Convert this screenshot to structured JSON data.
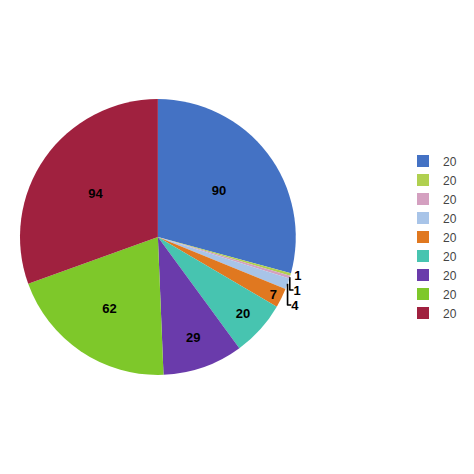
{
  "chart_data": {
    "type": "pie",
    "categories": [
      "20",
      "20",
      "20",
      "20",
      "20",
      "20",
      "20",
      "20",
      "20"
    ],
    "values": [
      90,
      1,
      1,
      4,
      7,
      20,
      29,
      62,
      94
    ],
    "colors": [
      "#4472C4",
      "#B0D050",
      "#D4A0C0",
      "#A8C4E8",
      "#E07820",
      "#47C4B0",
      "#6A3BAB",
      "#7EC82A",
      "#A0213F"
    ],
    "data_labels": true,
    "legend": "right"
  }
}
